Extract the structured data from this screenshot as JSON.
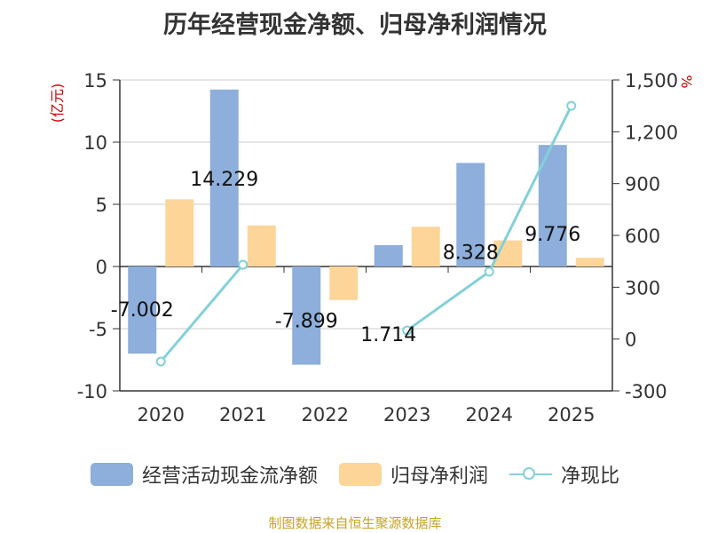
{
  "chart_data": {
    "type": "bar",
    "title": "历年经营现金净额、归母净利润情况",
    "categories": [
      "2020",
      "2021",
      "2022",
      "2023",
      "2024",
      "2025"
    ],
    "y_left": {
      "label": "(亿元)",
      "ticks": [
        15,
        10,
        5,
        0,
        -5,
        -10
      ],
      "tick_labels": [
        "15",
        "10",
        "5",
        "0",
        "-5",
        "-10"
      ],
      "range": [
        -10,
        15
      ]
    },
    "y_right": {
      "label": "%",
      "ticks": [
        1500,
        1200,
        900,
        600,
        300,
        0,
        -300
      ],
      "tick_labels": [
        "1,500",
        "1,200",
        "900",
        "600",
        "300",
        "0",
        "-300"
      ],
      "range": [
        -300,
        1500
      ]
    },
    "series": [
      {
        "name": "经营活动现金流净额",
        "type": "bar",
        "axis": "left",
        "values": [
          -7.002,
          14.229,
          -7.899,
          1.714,
          8.328,
          9.776
        ],
        "labels": [
          "-7.002",
          "14.229",
          "-7.899",
          "1.714",
          "8.328",
          "9.776"
        ]
      },
      {
        "name": "归母净利润",
        "type": "bar",
        "axis": "left",
        "values": [
          5.4,
          3.3,
          -2.7,
          3.2,
          2.1,
          0.7
        ]
      },
      {
        "name": "净现比",
        "type": "line",
        "axis": "right",
        "values": [
          -130,
          430,
          null,
          50,
          390,
          1350
        ]
      }
    ]
  },
  "colors": {
    "cash": "#8eaedb",
    "profit": "#fdd599",
    "ratio": "#84d0d8",
    "axis_label": "#cc0000",
    "footer": "#c9a227"
  },
  "legend": {
    "cash": "经营活动现金流净额",
    "profit": "归母净利润",
    "ratio": "净现比"
  },
  "footer": "制图数据来自恒生聚源数据库"
}
